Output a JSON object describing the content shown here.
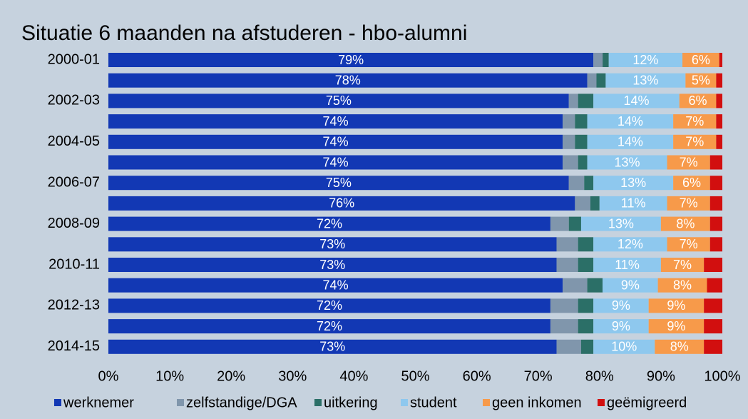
{
  "chart_data": {
    "type": "stacked-bar-horizontal",
    "title": "Situatie 6 maanden na afstuderen - hbo-alumni",
    "categories": [
      "2000-01",
      null,
      "2002-03",
      null,
      "2004-05",
      null,
      "2006-07",
      null,
      "2008-09",
      null,
      "2010-11",
      null,
      "2012-13",
      null,
      "2014-15"
    ],
    "series": [
      {
        "name": "werknemer",
        "color": "#1238b4",
        "values": [
          79,
          78,
          75,
          74,
          74,
          74,
          75,
          76,
          72,
          73,
          73,
          74,
          72,
          72,
          73
        ],
        "value_labels": [
          "79%",
          "78%",
          "75%",
          "74%",
          "74%",
          "74%",
          "75%",
          "76%",
          "72%",
          "73%",
          "73%",
          "74%",
          "72%",
          "72%",
          "73%"
        ]
      },
      {
        "name": "zelfstandige/DGA",
        "color": "#8096ac",
        "values": [
          1.5,
          1.5,
          1.5,
          2,
          2,
          2.5,
          2.5,
          2.5,
          3,
          3.5,
          3.5,
          4,
          4.5,
          4.5,
          4
        ]
      },
      {
        "name": "uitkering",
        "color": "#2b6f67",
        "values": [
          1,
          1.5,
          2.5,
          2,
          2,
          1.5,
          1.5,
          1.5,
          2,
          2.5,
          2.5,
          2.5,
          2.5,
          2.5,
          2
        ]
      },
      {
        "name": "student",
        "color": "#8ec8ee",
        "values": [
          12,
          13,
          14,
          14,
          14,
          13,
          13,
          11,
          13,
          12,
          11,
          9,
          9,
          9,
          10
        ],
        "value_labels": [
          "12%",
          "13%",
          "14%",
          "14%",
          "14%",
          "13%",
          "13%",
          "11%",
          "13%",
          "12%",
          "11%",
          "9%",
          "9%",
          "9%",
          "10%"
        ]
      },
      {
        "name": "geen inkomen",
        "color": "#f79a4a",
        "values": [
          6,
          5,
          6,
          7,
          7,
          7,
          6,
          7,
          8,
          7,
          7,
          8,
          9,
          9,
          8
        ],
        "value_labels": [
          "6%",
          "5%",
          "6%",
          "7%",
          "7%",
          "7%",
          "6%",
          "7%",
          "8%",
          "7%",
          "7%",
          "8%",
          "9%",
          "9%",
          "8%"
        ]
      },
      {
        "name": "geëmigreerd",
        "color": "#d20f0f",
        "values": [
          0.5,
          1,
          1,
          1,
          1,
          2,
          2,
          2,
          2,
          2,
          3,
          2.5,
          3,
          3,
          3
        ]
      }
    ],
    "xlim": [
      0,
      100
    ],
    "xticks": [
      {
        "value": 0,
        "label": "0%"
      },
      {
        "value": 10,
        "label": "10%"
      },
      {
        "value": 20,
        "label": "20%"
      },
      {
        "value": 30,
        "label": "30%"
      },
      {
        "value": 40,
        "label": "40%"
      },
      {
        "value": 50,
        "label": "50%"
      },
      {
        "value": 60,
        "label": "60%"
      },
      {
        "value": 70,
        "label": "70%"
      },
      {
        "value": 80,
        "label": "80%"
      },
      {
        "value": 90,
        "label": "90%"
      },
      {
        "value": 100,
        "label": "100%"
      }
    ],
    "legend": "bottom"
  }
}
